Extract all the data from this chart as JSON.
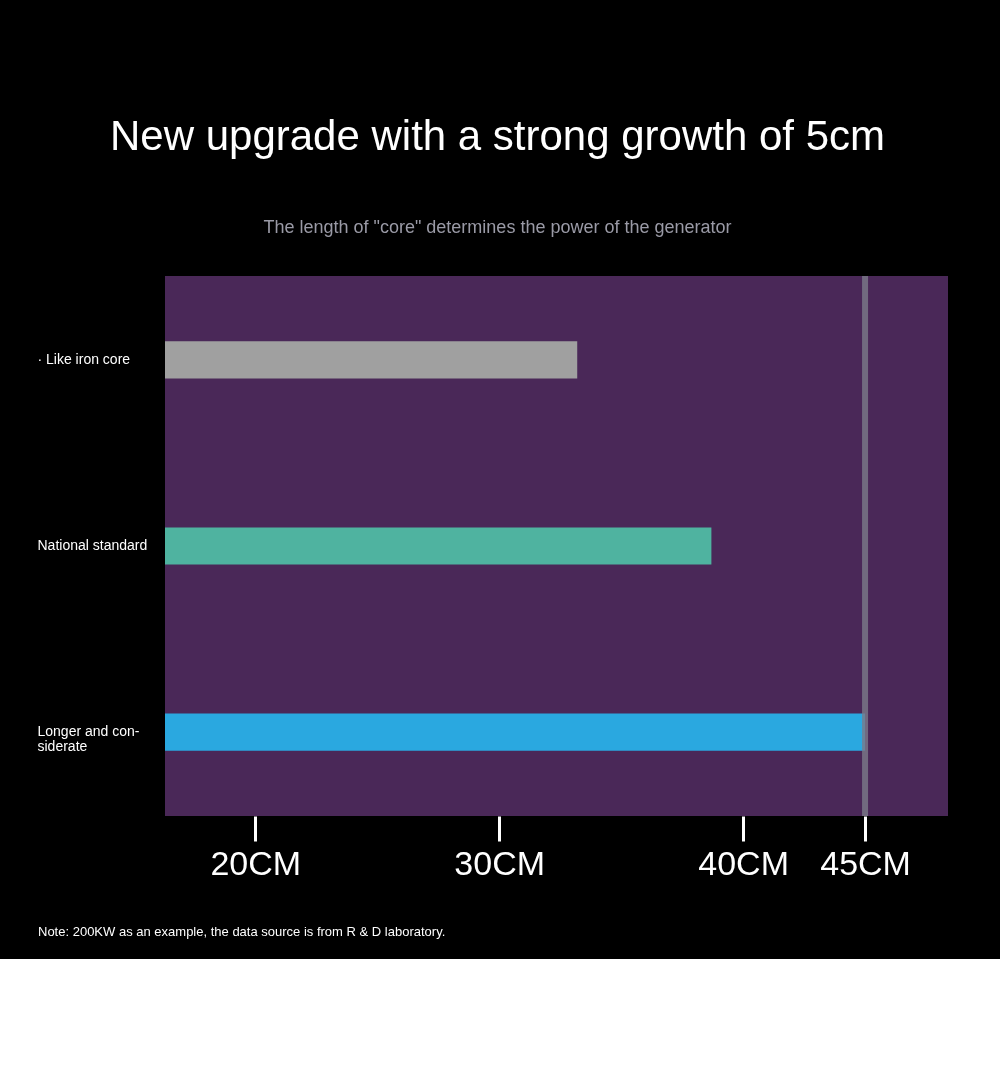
{
  "chart_data": {
    "type": "bar",
    "orientation": "horizontal",
    "title": "New upgrade with a strong growth of 5cm",
    "subtitle": "The length of \"core\" determines the power of the generator",
    "categories": [
      "· Like iron core",
      "National standard",
      "Longer and con-\nsiderate"
    ],
    "values": [
      33.2,
      38.7,
      45.0
    ],
    "colors": [
      "#a0a0a0",
      "#4fb3a0",
      "#2aa8e0"
    ],
    "xlim": [
      16.3,
      48.4
    ],
    "xticks": [
      {
        "value": 20,
        "label": "20CM"
      },
      {
        "value": 30,
        "label": "30CM"
      },
      {
        "value": 40,
        "label": "40CM"
      },
      {
        "value": 45,
        "label": "45CM"
      }
    ],
    "ref_lines": [
      {
        "axis": "x",
        "value": 45,
        "label": null,
        "color": "#7a7a8a"
      }
    ],
    "grid": false,
    "annotations": [
      "Note: 200KW as an example, the data source is from R & D laboratory."
    ]
  }
}
